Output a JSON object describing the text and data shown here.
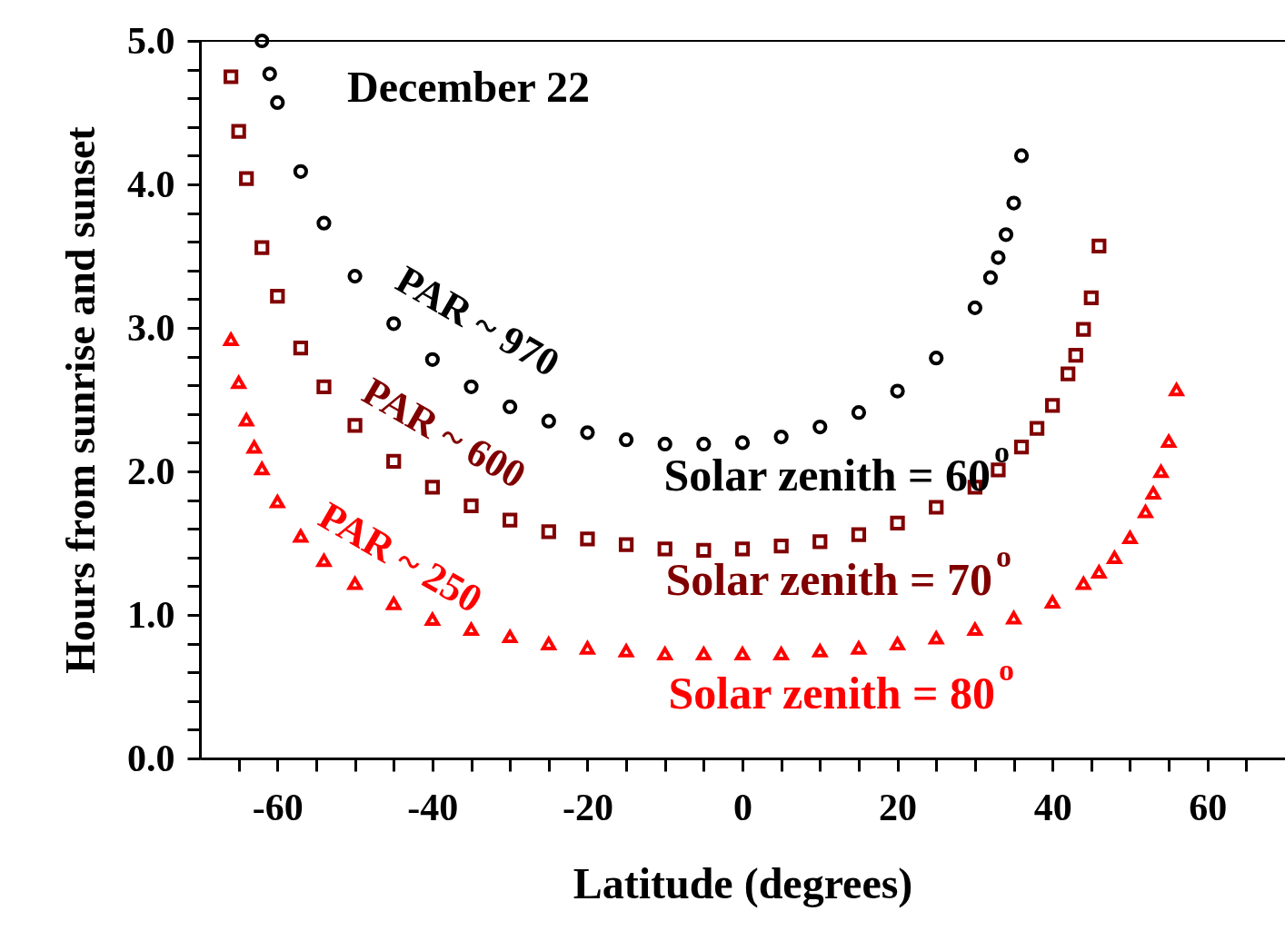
{
  "chart_data": {
    "type": "scatter",
    "title": "December 22",
    "xlabel": "Latitude (degrees)",
    "ylabel": "Hours from sunrise and sunset",
    "xlim": [
      -70,
      70
    ],
    "ylim": [
      0,
      5
    ],
    "xticks": [
      {
        "value": -65,
        "label": null
      },
      -60,
      {
        "value": -55,
        "label": null
      },
      {
        "value": -50,
        "label": null
      },
      {
        "value": -45,
        "label": null
      },
      -40,
      {
        "value": -35,
        "label": null
      },
      {
        "value": -30,
        "label": null
      },
      {
        "value": -25,
        "label": null
      },
      -20,
      {
        "value": -15,
        "label": null
      },
      {
        "value": -10,
        "label": null
      },
      {
        "value": -5,
        "label": null
      },
      0,
      {
        "value": 5,
        "label": null
      },
      {
        "value": 10,
        "label": null
      },
      {
        "value": 15,
        "label": null
      },
      20,
      {
        "value": 25,
        "label": null
      },
      {
        "value": 30,
        "label": null
      },
      {
        "value": 35,
        "label": null
      },
      40,
      {
        "value": 45,
        "label": null
      },
      {
        "value": 50,
        "label": null
      },
      {
        "value": 55,
        "label": null
      },
      60,
      {
        "value": 65,
        "label": null
      }
    ],
    "yticks": [
      {
        "value": 0,
        "label": "0.0"
      },
      {
        "value": 0.2,
        "label": null
      },
      {
        "value": 0.4,
        "label": null
      },
      {
        "value": 0.6,
        "label": null
      },
      {
        "value": 0.8,
        "label": null
      },
      {
        "value": 1,
        "label": "1.0"
      },
      {
        "value": 1.2,
        "label": null
      },
      {
        "value": 1.4,
        "label": null
      },
      {
        "value": 1.6,
        "label": null
      },
      {
        "value": 1.8,
        "label": null
      },
      {
        "value": 2,
        "label": "2.0"
      },
      {
        "value": 2.2,
        "label": null
      },
      {
        "value": 2.4,
        "label": null
      },
      {
        "value": 2.6,
        "label": null
      },
      {
        "value": 2.8,
        "label": null
      },
      {
        "value": 3,
        "label": "3.0"
      },
      {
        "value": 3.2,
        "label": null
      },
      {
        "value": 3.4,
        "label": null
      },
      {
        "value": 3.6,
        "label": null
      },
      {
        "value": 3.8,
        "label": null
      },
      {
        "value": 4,
        "label": "4.0"
      },
      {
        "value": 4.2,
        "label": null
      },
      {
        "value": 4.4,
        "label": null
      },
      {
        "value": 4.6,
        "label": null
      },
      {
        "value": 4.8,
        "label": null
      },
      {
        "value": 5,
        "label": "5.0"
      }
    ],
    "grid": false,
    "series": [
      {
        "color": "#000000",
        "marker": "circle",
        "x": [
          -62,
          -61,
          -60,
          -57,
          -54,
          -50,
          -45,
          -40,
          -35,
          -30,
          -25,
          -20,
          -15,
          -10,
          -5,
          0,
          5,
          10,
          15,
          20,
          25,
          30,
          32,
          33,
          34,
          35,
          36
        ],
        "values": [
          5.0,
          4.77,
          4.57,
          4.09,
          3.73,
          3.36,
          3.03,
          2.78,
          2.59,
          2.45,
          2.35,
          2.27,
          2.22,
          2.19,
          2.19,
          2.2,
          2.24,
          2.31,
          2.41,
          2.56,
          2.79,
          3.14,
          3.35,
          3.49,
          3.65,
          3.87,
          4.2
        ]
      },
      {
        "color": "#800000",
        "marker": "square",
        "x": [
          -66,
          -65,
          -64,
          -62,
          -60,
          -57,
          -54,
          -50,
          -45,
          -40,
          -35,
          -30,
          -25,
          -20,
          -15,
          -10,
          -5,
          0,
          5,
          10,
          15,
          20,
          25,
          30,
          33,
          36,
          38,
          40,
          42,
          43,
          44,
          45,
          46
        ],
        "values": [
          4.75,
          4.37,
          4.04,
          3.56,
          3.22,
          2.86,
          2.59,
          2.32,
          2.07,
          1.89,
          1.76,
          1.66,
          1.58,
          1.53,
          1.49,
          1.46,
          1.45,
          1.46,
          1.48,
          1.51,
          1.56,
          1.64,
          1.75,
          1.89,
          2.01,
          2.17,
          2.3,
          2.46,
          2.68,
          2.81,
          2.99,
          3.21,
          3.57
        ]
      },
      {
        "color": "#ff0000",
        "marker": "triangle",
        "x": [
          -66,
          -65,
          -64,
          -63,
          -62,
          -60,
          -57,
          -54,
          -50,
          -45,
          -40,
          -35,
          -30,
          -25,
          -20,
          -15,
          -10,
          -5,
          0,
          5,
          10,
          15,
          20,
          25,
          30,
          35,
          40,
          44,
          46,
          48,
          50,
          52,
          53,
          54,
          55,
          56
        ],
        "values": [
          2.92,
          2.62,
          2.36,
          2.17,
          2.02,
          1.79,
          1.55,
          1.38,
          1.22,
          1.08,
          0.97,
          0.9,
          0.85,
          0.8,
          0.77,
          0.75,
          0.73,
          0.73,
          0.73,
          0.73,
          0.75,
          0.77,
          0.8,
          0.84,
          0.9,
          0.98,
          1.09,
          1.22,
          1.3,
          1.4,
          1.54,
          1.72,
          1.85,
          2.0,
          2.21,
          2.57
        ]
      }
    ],
    "annotations": [
      "PAR ~ 970",
      "PAR ~ 600",
      "PAR ~ 250",
      "Solar zenith = 60$^{o}$",
      "Solar zenith = 70$^{o}$",
      "Solar zenith = 80$^{o}$"
    ]
  }
}
